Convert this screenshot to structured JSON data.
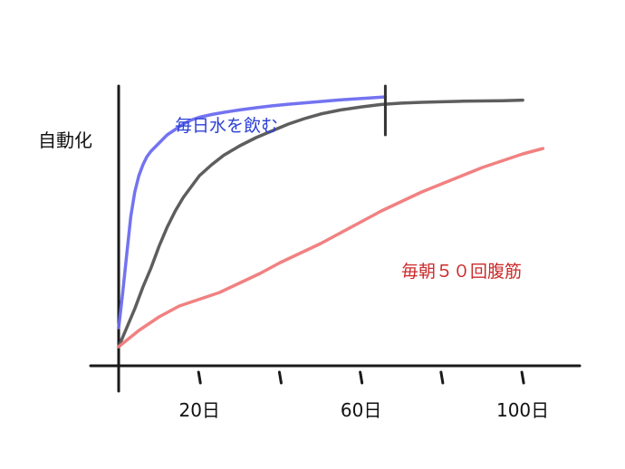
{
  "chart_data": {
    "type": "line",
    "ylabel": "自動化",
    "x_tick_labels": [
      {
        "x": 20,
        "label": "20日"
      },
      {
        "x": 60,
        "label": "60日"
      },
      {
        "x": 100,
        "label": "100日"
      }
    ],
    "x_ticks": [
      20,
      40,
      60,
      80,
      100
    ],
    "xlim": [
      0,
      115
    ],
    "ylim": [
      0,
      100
    ],
    "marker": {
      "x": 66,
      "y_from": 82,
      "y_to": 100
    },
    "series": [
      {
        "name": "毎日水を飲む",
        "color": "#6b6bf0",
        "x": [
          0,
          1,
          2,
          3,
          4,
          5,
          6,
          7,
          8,
          10,
          12,
          14,
          16,
          18,
          20,
          23,
          26,
          30,
          34,
          38,
          42,
          46,
          50,
          54,
          58,
          62,
          66
        ],
        "y": [
          11,
          24,
          38,
          52,
          61,
          67,
          71,
          74,
          76,
          79,
          82,
          84,
          86,
          87.5,
          88.5,
          89.5,
          90.3,
          91.2,
          92,
          92.7,
          93.3,
          93.8,
          94.3,
          94.8,
          95.2,
          95.6,
          96
        ]
      },
      {
        "name": "",
        "color": "#555555",
        "x": [
          0,
          2,
          4,
          6,
          8,
          10,
          12,
          14,
          16,
          18,
          20,
          23,
          26,
          30,
          34,
          38,
          42,
          46,
          50,
          55,
          60,
          65,
          70,
          75,
          80,
          85,
          90,
          95,
          100
        ],
        "y": [
          4,
          11,
          18,
          26,
          33,
          41,
          48,
          54,
          59,
          63,
          67,
          71,
          74.5,
          78,
          81,
          83.5,
          86,
          88,
          89.7,
          91.2,
          92.3,
          93.2,
          93.7,
          94,
          94.2,
          94.4,
          94.5,
          94.6,
          94.8
        ]
      },
      {
        "name": "毎朝５０回腹筋",
        "color": "#f07a7a",
        "x": [
          0,
          5,
          10,
          15,
          20,
          25,
          30,
          35,
          40,
          45,
          50,
          55,
          60,
          65,
          70,
          75,
          80,
          85,
          90,
          95,
          100,
          105
        ],
        "y": [
          4,
          10,
          15,
          19,
          21.5,
          24,
          27.5,
          31,
          35,
          38.5,
          42,
          46,
          50,
          54,
          57.5,
          61,
          64,
          67,
          70,
          72.5,
          75,
          77
        ]
      }
    ]
  }
}
